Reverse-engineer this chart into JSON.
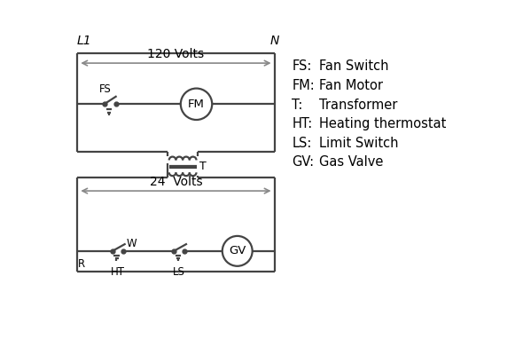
{
  "bg_color": "#ffffff",
  "line_color": "#444444",
  "text_color": "#000000",
  "arrow_color": "#888888",
  "legend_items": [
    [
      "FS:",
      "Fan Switch"
    ],
    [
      "FM:",
      "Fan Motor"
    ],
    [
      "T:",
      "Transformer"
    ],
    [
      "HT:",
      "Heating thermostat"
    ],
    [
      "LS:",
      "Limit Switch"
    ],
    [
      "GV:",
      "Gas Valve"
    ]
  ],
  "L1_label": "L1",
  "N_label": "N",
  "volts120_label": "120 Volts",
  "volts24_label": "24  Volts",
  "FS_label": "FS",
  "FM_label": "FM",
  "T_label": "T",
  "R_label": "R",
  "W_label": "W",
  "HT_label": "HT",
  "LS_label": "LS",
  "GV_label": "GV"
}
